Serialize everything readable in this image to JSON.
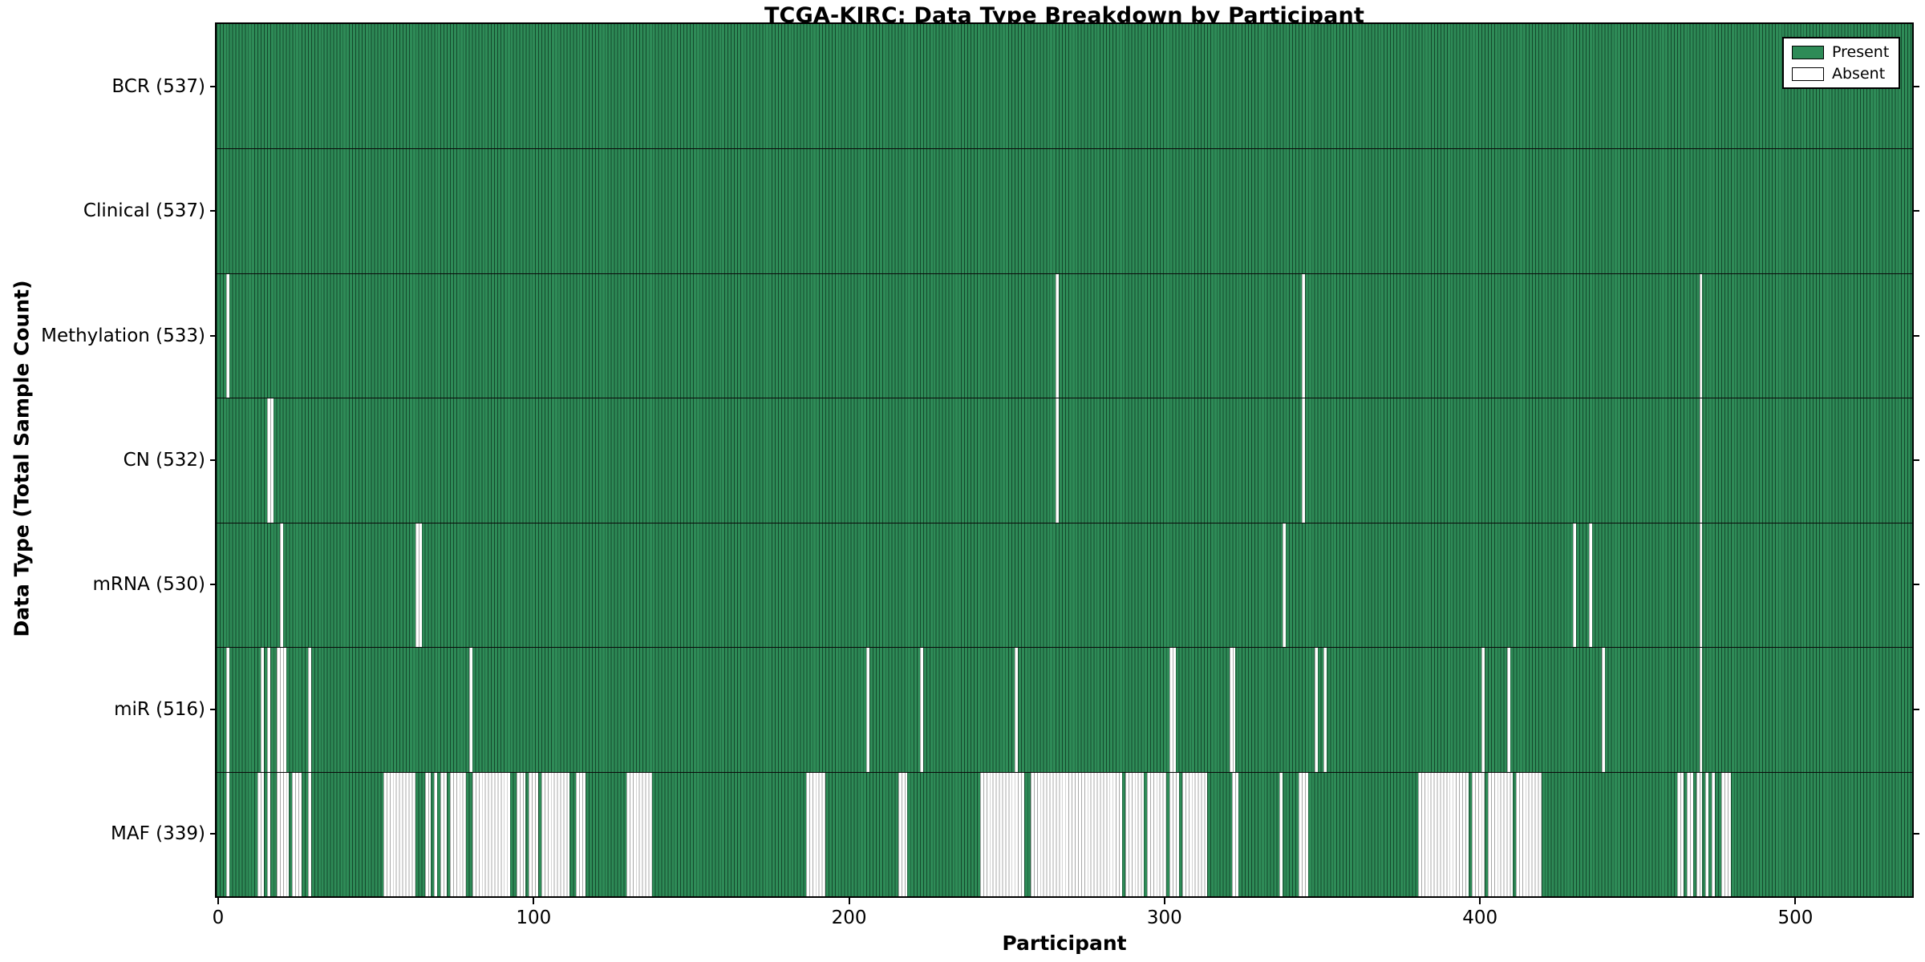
{
  "chart_data": {
    "type": "heatmap",
    "title": "TCGA-KIRC: Data Type Breakdown by Participant",
    "xlabel": "Participant",
    "ylabel": "Data Type (Total Sample Count)",
    "x_ticks": [
      0,
      100,
      200,
      300,
      400,
      500
    ],
    "x_range": [
      0,
      537
    ],
    "n_participants": 537,
    "grid": false,
    "legend": {
      "position": "upper right",
      "entries": [
        {
          "label": "Present",
          "color": "#2e8b57"
        },
        {
          "label": "Absent",
          "color": "#ffffff"
        }
      ]
    },
    "colors": {
      "present_fill": "#2e8b57",
      "present_edge": "#14482c",
      "absent_fill": "#ffffff",
      "absent_edge": "#a8a8a8",
      "row_divider": "#0a0a0a",
      "axis": "#000000"
    },
    "rows": [
      {
        "data_type": "BCR",
        "label": "BCR (537)",
        "present_count": 537,
        "absent_ranges": []
      },
      {
        "data_type": "Clinical",
        "label": "Clinical (537)",
        "present_count": 537,
        "absent_ranges": []
      },
      {
        "data_type": "Methylation",
        "label": "Methylation (533)",
        "present_count": 533,
        "absent_ranges": [
          [
            3,
            3
          ],
          [
            266,
            266
          ],
          [
            344,
            344
          ],
          [
            470,
            470
          ]
        ]
      },
      {
        "data_type": "CN",
        "label": "CN (532)",
        "present_count": 532,
        "absent_ranges": [
          [
            16,
            17
          ],
          [
            266,
            266
          ],
          [
            344,
            344
          ],
          [
            470,
            470
          ]
        ]
      },
      {
        "data_type": "mRNA",
        "label": "mRNA (530)",
        "present_count": 530,
        "absent_ranges": [
          [
            20,
            20
          ],
          [
            63,
            64
          ],
          [
            338,
            338
          ],
          [
            430,
            430
          ],
          [
            435,
            435
          ],
          [
            470,
            470
          ]
        ]
      },
      {
        "data_type": "miR",
        "label": "miR (516)",
        "present_count": 516,
        "absent_ranges": [
          [
            3,
            3
          ],
          [
            14,
            14
          ],
          [
            16,
            16
          ],
          [
            19,
            21
          ],
          [
            29,
            29
          ],
          [
            80,
            80
          ],
          [
            206,
            206
          ],
          [
            223,
            223
          ],
          [
            253,
            253
          ],
          [
            302,
            303
          ],
          [
            321,
            322
          ],
          [
            348,
            348
          ],
          [
            351,
            351
          ],
          [
            401,
            401
          ],
          [
            409,
            409
          ],
          [
            439,
            439
          ],
          [
            470,
            470
          ]
        ]
      },
      {
        "data_type": "MAF",
        "label": "MAF (339)",
        "present_count": 339,
        "absent_ranges": [
          [
            3,
            3
          ],
          [
            13,
            14
          ],
          [
            16,
            16
          ],
          [
            19,
            22
          ],
          [
            24,
            26
          ],
          [
            29,
            29
          ],
          [
            53,
            62
          ],
          [
            66,
            67
          ],
          [
            69,
            69
          ],
          [
            71,
            72
          ],
          [
            74,
            78
          ],
          [
            81,
            92
          ],
          [
            95,
            97
          ],
          [
            99,
            101
          ],
          [
            103,
            111
          ],
          [
            114,
            116
          ],
          [
            130,
            137
          ],
          [
            187,
            192
          ],
          [
            216,
            218
          ],
          [
            242,
            255
          ],
          [
            258,
            286
          ],
          [
            288,
            293
          ],
          [
            295,
            300
          ],
          [
            302,
            304
          ],
          [
            306,
            313
          ],
          [
            322,
            323
          ],
          [
            337,
            337
          ],
          [
            343,
            345
          ],
          [
            381,
            396
          ],
          [
            398,
            401
          ],
          [
            403,
            410
          ],
          [
            412,
            419
          ],
          [
            463,
            464
          ],
          [
            466,
            467
          ],
          [
            469,
            470
          ],
          [
            472,
            472
          ],
          [
            474,
            474
          ],
          [
            477,
            479
          ]
        ]
      }
    ]
  }
}
